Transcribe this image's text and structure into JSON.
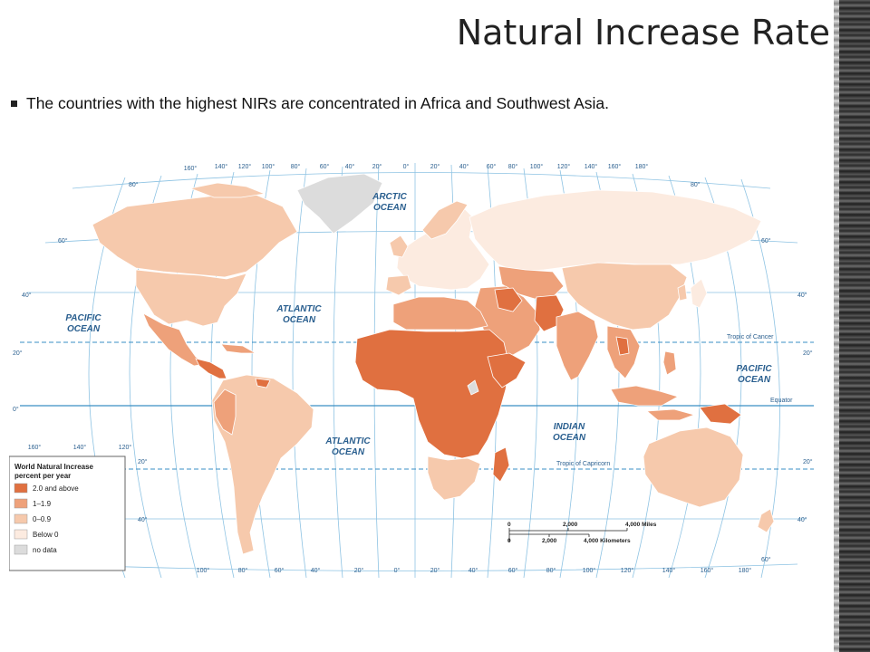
{
  "slide": {
    "title": "Natural Increase Rate",
    "bullet": "The countries with the highest NIRs are concentrated in Africa and Southwest Asia."
  },
  "map": {
    "oceans": {
      "arctic_1": "ARCTIC",
      "arctic_2": "OCEAN",
      "pacific_w_1": "PACIFIC",
      "pacific_w_2": "OCEAN",
      "atlantic_n_1": "ATLANTIC",
      "atlantic_n_2": "OCEAN",
      "atlantic_s_1": "ATLANTIC",
      "atlantic_s_2": "OCEAN",
      "indian_1": "INDIAN",
      "indian_2": "OCEAN",
      "pacific_e_1": "PACIFIC",
      "pacific_e_2": "OCEAN"
    },
    "lines": {
      "cancer": "Tropic of Cancer",
      "equator": "Equator",
      "capricorn": "Tropic of Capricorn"
    },
    "top_lon_labels": [
      "160°",
      "140°",
      "120°",
      "100°",
      "80°",
      "60°",
      "40°",
      "20°",
      "0°",
      "20°",
      "40°",
      "60°",
      "80°",
      "100°",
      "120°",
      "140°",
      "160°",
      "180°"
    ],
    "bottom_lon_labels": [
      "100°",
      "80°",
      "60°",
      "40°",
      "20°",
      "0°",
      "20°",
      "40°",
      "60°",
      "80°",
      "100°",
      "120°",
      "140°",
      "160°",
      "180°"
    ],
    "left_pacific_lon_labels": [
      "160°",
      "140°",
      "120°"
    ],
    "left_lat_labels": [
      "80°",
      "60°",
      "40°",
      "20°",
      "0°",
      "20°",
      "40°"
    ],
    "right_lat_labels": [
      "80°",
      "60°",
      "40°",
      "20°",
      "20°",
      "40°",
      "60°"
    ],
    "scale": {
      "miles_0": "0",
      "miles_mid": "2,000",
      "miles_end": "4,000 Miles",
      "km_0": "0",
      "km_mid": "2,000",
      "km_end": "4,000 Kilometers"
    },
    "legend": {
      "title_1": "World Natural Increase",
      "title_2": "percent per year",
      "items": [
        {
          "label": "2.0 and above",
          "color": "#e07040"
        },
        {
          "label": "1–1.9",
          "color": "#eea17a"
        },
        {
          "label": "0–0.9",
          "color": "#f6c9ac"
        },
        {
          "label": "Below 0",
          "color": "#fcebe0"
        },
        {
          "label": "no data",
          "color": "#dcdcdc"
        }
      ]
    },
    "colors": {
      "ocean": "#ffffff",
      "grid": "#8ec3e3",
      "ocean_text": "#2a5f8f",
      "border": "#ffffff"
    }
  }
}
